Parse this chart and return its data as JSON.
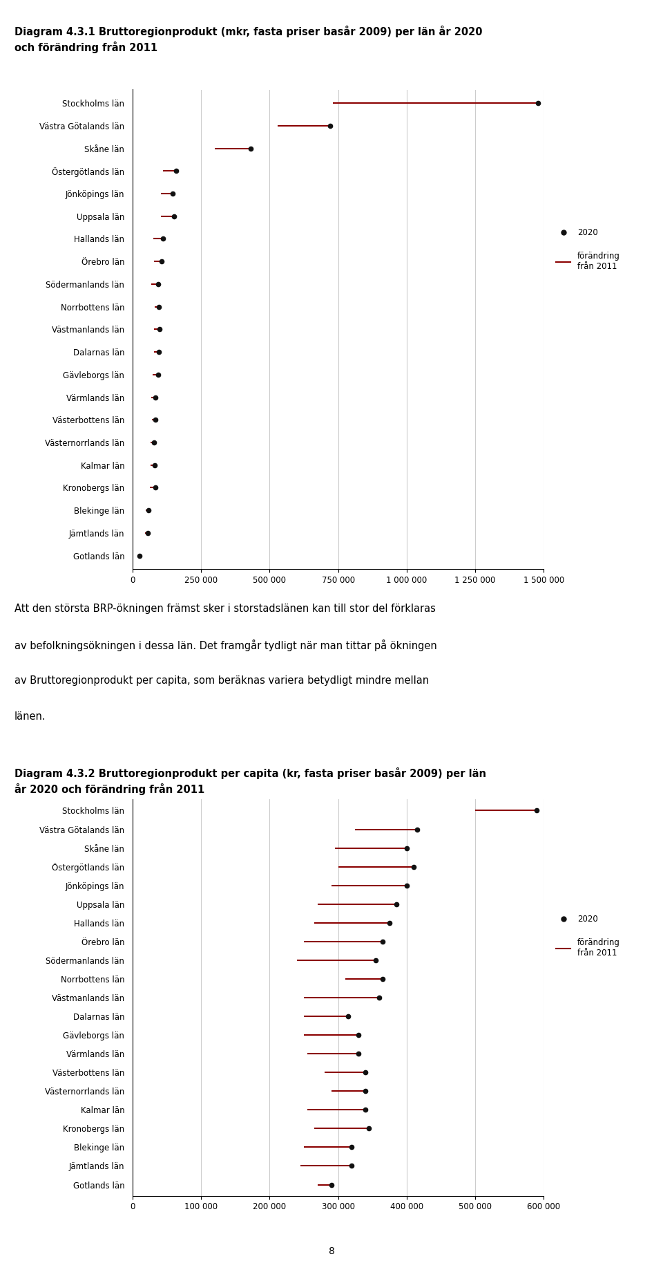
{
  "title1": "Diagram 4.3.1 Bruttoregionprodukt (mkr, fasta priser basår 2009) per län år 2020\noch förändring från 2011",
  "title2": "Diagram 4.3.2 Bruttoregionprodukt per capita (kr, fasta priser basår 2009) per län\når 2020 och förändring från 2011",
  "labels": [
    "Stockholms län",
    "Västra Götalands län",
    "Skåne län",
    "Östergötlands län",
    "Jönköpings län",
    "Uppsala län",
    "Hallands län",
    "Örebro län",
    "Södermanlands län",
    "Norrbottens län",
    "Västmanlands län",
    "Dalarnas län",
    "Gävleborgs län",
    "Värmlands län",
    "Västerbottens län",
    "Västernorrlands län",
    "Kalmar län",
    "Kronobergs län",
    "Blekinge län",
    "Jämtlands län",
    "Gotlands län"
  ],
  "chart1": {
    "values_2020": [
      1480000,
      720000,
      430000,
      160000,
      145000,
      152000,
      110000,
      105000,
      93000,
      96000,
      99000,
      95000,
      94000,
      82000,
      82000,
      78000,
      80000,
      84000,
      58000,
      56000,
      24000
    ],
    "values_2011": [
      730000,
      530000,
      300000,
      110000,
      103000,
      104000,
      75000,
      77000,
      68000,
      81000,
      77000,
      77000,
      74000,
      67000,
      70000,
      66000,
      66000,
      64000,
      48000,
      46000,
      19000
    ],
    "xlim": [
      0,
      1500000
    ],
    "xticks": [
      0,
      250000,
      500000,
      750000,
      1000000,
      1250000,
      1500000
    ],
    "xticklabels": [
      "0",
      "250 000",
      "500 000",
      "750 000",
      "1 000 000",
      "1 250 000",
      "1 500 000"
    ]
  },
  "chart2": {
    "values_2020": [
      590000,
      415000,
      400000,
      410000,
      400000,
      385000,
      375000,
      365000,
      355000,
      365000,
      360000,
      315000,
      330000,
      330000,
      340000,
      340000,
      340000,
      345000,
      320000,
      320000,
      290000
    ],
    "values_2011": [
      500000,
      325000,
      295000,
      300000,
      290000,
      270000,
      265000,
      250000,
      240000,
      310000,
      250000,
      250000,
      250000,
      255000,
      280000,
      290000,
      255000,
      265000,
      250000,
      245000,
      270000
    ],
    "xlim": [
      0,
      600000
    ],
    "xticks": [
      0,
      100000,
      200000,
      300000,
      400000,
      500000,
      600000
    ],
    "xticklabels": [
      "0",
      "100 000",
      "200 000",
      "300 000",
      "400 000",
      "500 000",
      "600 000"
    ]
  },
  "dot_color": "#111111",
  "line_color": "#8b0000",
  "grid_color": "#cccccc",
  "text_color": "#000000",
  "page_number": "8",
  "body_text_line1": "Att den största BRP-ökningen främst sker i storstadslänen kan till stor del förklaras",
  "body_text_line2": "av befolkningsökningen i dessa län. Det framgår tydligt när man tittar på ökningen",
  "body_text_line3": "av Bruttoregionprodukt per capita, som beräknas variera betydligt mindre mellan",
  "body_text_line4": "länen."
}
